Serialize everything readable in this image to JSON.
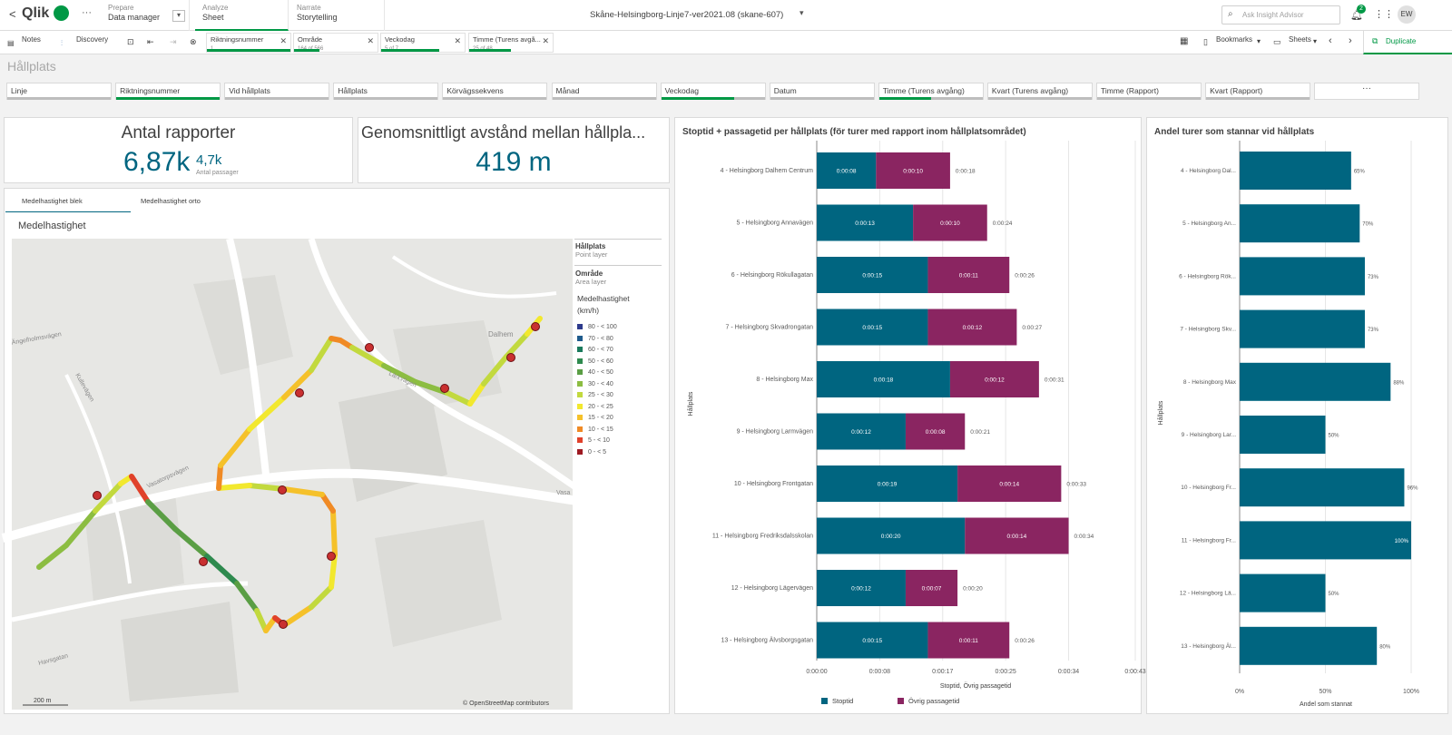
{
  "app": {
    "back_label": "<",
    "brand": "Qlik",
    "more_label": "···",
    "title": "Skåne-Helsingborg-Linje7-ver2021.08 (skane-607)",
    "search_placeholder": "Ask Insight Advisor",
    "notif_count": "2",
    "avatar": "EW"
  },
  "nav": [
    {
      "small": "Prepare",
      "label": "Data manager"
    },
    {
      "small": "Analyze",
      "label": "Sheet"
    },
    {
      "small": "Narrate",
      "label": "Storytelling"
    }
  ],
  "toolbar": {
    "notes": "Notes",
    "discovery": "Discovery",
    "bookmarks": "Bookmarks",
    "sheets": "Sheets",
    "duplicate": "Duplicate"
  },
  "selections": [
    {
      "label": "Riktningsnummer",
      "value": "1",
      "fill": 1.0
    },
    {
      "label": "Område",
      "value": "164 of 566",
      "fill": 0.3
    },
    {
      "label": "Veckodag",
      "value": "5 of 7",
      "fill": 0.7
    },
    {
      "label": "Timme (Turens avgå...",
      "value": "25 of 48",
      "fill": 0.5
    }
  ],
  "sheet": {
    "title": "Hållplats"
  },
  "filters": [
    {
      "label": "Linje",
      "fill": 0.0
    },
    {
      "label": "Riktningsnummer",
      "fill": 1.0
    },
    {
      "label": "Vid hållplats",
      "fill": 0.0
    },
    {
      "label": "Hållplats",
      "fill": 0.0
    },
    {
      "label": "Körvägssekvens",
      "fill": 0.0
    },
    {
      "label": "Månad",
      "fill": 0.0
    },
    {
      "label": "Veckodag",
      "fill": 0.7
    },
    {
      "label": "Datum",
      "fill": 0.0
    },
    {
      "label": "Timme (Turens avgång)",
      "fill": 0.5
    },
    {
      "label": "Kvart (Turens avgång)",
      "fill": 0.0
    },
    {
      "label": "Timme (Rapport)",
      "fill": 0.0
    },
    {
      "label": "Kvart (Rapport)",
      "fill": 0.0
    }
  ],
  "filter_more": "···",
  "kpi1": {
    "title": "Antal rapporter",
    "value": "6,87k",
    "sup": "4,7k",
    "sub": "Antal passager"
  },
  "kpi2": {
    "title": "Genomsnittligt avstånd mellan hållpla...",
    "value": "419 m"
  },
  "map": {
    "tabs": [
      "Medelhastighet blek",
      "Medelhastighet orto"
    ],
    "title": "Medelhastighet",
    "legend": {
      "layer1": "Hållplats",
      "layer1_sub": "Point layer",
      "layer2": "Område",
      "layer2_sub": "Area layer",
      "title": "Medelhastighet",
      "unit": "(km/h)"
    },
    "bins": [
      {
        "label": "80 - < 100",
        "color": "#2d3a8c"
      },
      {
        "label": "70 - < 80",
        "color": "#1f5b8c"
      },
      {
        "label": "60 - < 70",
        "color": "#1a7a5c"
      },
      {
        "label": "50 - < 60",
        "color": "#2e8a4e"
      },
      {
        "label": "40 - < 50",
        "color": "#5a9e44"
      },
      {
        "label": "30 - < 40",
        "color": "#8cbd42"
      },
      {
        "label": "25 - < 30",
        "color": "#c2d93e"
      },
      {
        "label": "20 - < 25",
        "color": "#f2e82e"
      },
      {
        "label": "15 - < 20",
        "color": "#f5c12a"
      },
      {
        "label": "10 - < 15",
        "color": "#f08a24"
      },
      {
        "label": "5 - < 10",
        "color": "#e0412a"
      },
      {
        "label": "0 - < 5",
        "color": "#9e1a22"
      }
    ],
    "scale": "200 m",
    "attribution": "© OpenStreetMap contributors",
    "streets": [
      "Ängelholmsvägen",
      "Vasatorpsvägen",
      "Havsgatan",
      "Kullevägen",
      "Dalhem",
      "Lärkvägen",
      "Vasa"
    ]
  },
  "chart1": {
    "title": "Stoptid + passagetid per hållplats (för turer med rapport inom hållplatsområdet)",
    "ylabel": "Hållplats",
    "xlabel": "Stoptid, Övrig passagetid",
    "ticks": [
      "0:00:00",
      "0:00:08",
      "0:00:17",
      "0:00:25",
      "0:00:34",
      "0:00:43"
    ],
    "legend": [
      "Stoptid",
      "Övrig passagetid"
    ],
    "colors": [
      "#006580",
      "#8a2561"
    ],
    "categories": [
      "4 - Helsingborg Dalhem Centrum",
      "5 - Helsingborg Annavägen",
      "6 - Helsingborg Rökullagatan",
      "7 - Helsingborg Skvadrongatan",
      "8 - Helsingborg Max",
      "9 - Helsingborg Larmvägen",
      "10 - Helsingborg Frontgatan",
      "11 - Helsingborg Fredriksdalsskolan",
      "12 - Helsingborg Lägervägen",
      "13 - Helsingborg Älvsborgsgatan"
    ],
    "stop": [
      8,
      13,
      15,
      15,
      18,
      12,
      19,
      20,
      12,
      15
    ],
    "stop_labels": [
      "0:00:08",
      "0:00:13",
      "0:00:15",
      "0:00:15",
      "0:00:18",
      "0:00:12",
      "0:00:19",
      "0:00:20",
      "0:00:12",
      "0:00:15"
    ],
    "other": [
      10,
      10,
      11,
      12,
      12,
      8,
      14,
      14,
      7,
      11
    ],
    "other_labels": [
      "0:00:10",
      "0:00:10",
      "0:00:11",
      "0:00:12",
      "0:00:12",
      "0:00:08",
      "0:00:14",
      "0:00:14",
      "0:00:07",
      "0:00:11"
    ],
    "total_labels": [
      "0:00:18",
      "0:00:24",
      "0:00:26",
      "0:00:27",
      "0:00:31",
      "0:00:21",
      "0:00:33",
      "0:00:34",
      "0:00:20",
      "0:00:26"
    ]
  },
  "chart2": {
    "title": "Andel turer som stannar vid hållplats",
    "ylabel": "Hållplats",
    "xlabel": "Andel som stannat",
    "ticks": [
      "0%",
      "50%",
      "100%"
    ],
    "color": "#006580",
    "categories": [
      "4 - Helsingborg Dal...",
      "5 - Helsingborg An...",
      "6 - Helsingborg Rök...",
      "7 - Helsingborg Skv...",
      "8 - Helsingborg Max",
      "9 - Helsingborg Lar...",
      "10 - Helsingborg Fr...",
      "11 - Helsingborg Fr...",
      "12 - Helsingborg Lä...",
      "13 - Helsingborg Äl..."
    ],
    "values": [
      65,
      70,
      73,
      73,
      88,
      50,
      96,
      100,
      50,
      80
    ],
    "labels": [
      "65%",
      "70%",
      "73%",
      "73%",
      "88%",
      "50%",
      "96%",
      "100%",
      "50%",
      "80%"
    ]
  },
  "chart_data": [
    {
      "type": "bar",
      "title": "Stoptid + passagetid per hållplats (för turer med rapport inom hållplatsområdet)",
      "categories": [
        "4 - Helsingborg Dalhem Centrum",
        "5 - Helsingborg Annavägen",
        "6 - Helsingborg Rökullagatan",
        "7 - Helsingborg Skvadrongatan",
        "8 - Helsingborg Max",
        "9 - Helsingborg Larmvägen",
        "10 - Helsingborg Frontgatan",
        "11 - Helsingborg Fredriksdalsskolan",
        "12 - Helsingborg Lägervägen",
        "13 - Helsingborg Älvsborgsgatan"
      ],
      "series": [
        {
          "name": "Stoptid",
          "values": [
            8,
            13,
            15,
            15,
            18,
            12,
            19,
            20,
            12,
            15
          ]
        },
        {
          "name": "Övrig passagetid",
          "values": [
            10,
            10,
            11,
            12,
            12,
            8,
            14,
            14,
            7,
            11
          ]
        }
      ],
      "xlabel": "Stoptid, Övrig passagetid",
      "ylabel": "Hållplats",
      "xlim": [
        0,
        43
      ]
    },
    {
      "type": "bar",
      "title": "Andel turer som stannar vid hållplats",
      "categories": [
        "4 - Helsingborg Dal...",
        "5 - Helsingborg An...",
        "6 - Helsingborg Rök...",
        "7 - Helsingborg Skv...",
        "8 - Helsingborg Max",
        "9 - Helsingborg Lar...",
        "10 - Helsingborg Fr...",
        "11 - Helsingborg Fr...",
        "12 - Helsingborg Lä...",
        "13 - Helsingborg Äl..."
      ],
      "values": [
        65,
        70,
        73,
        73,
        88,
        50,
        96,
        100,
        50,
        80
      ],
      "xlabel": "Andel som stannat",
      "ylabel": "Hållplats",
      "xlim": [
        0,
        100
      ]
    }
  ]
}
